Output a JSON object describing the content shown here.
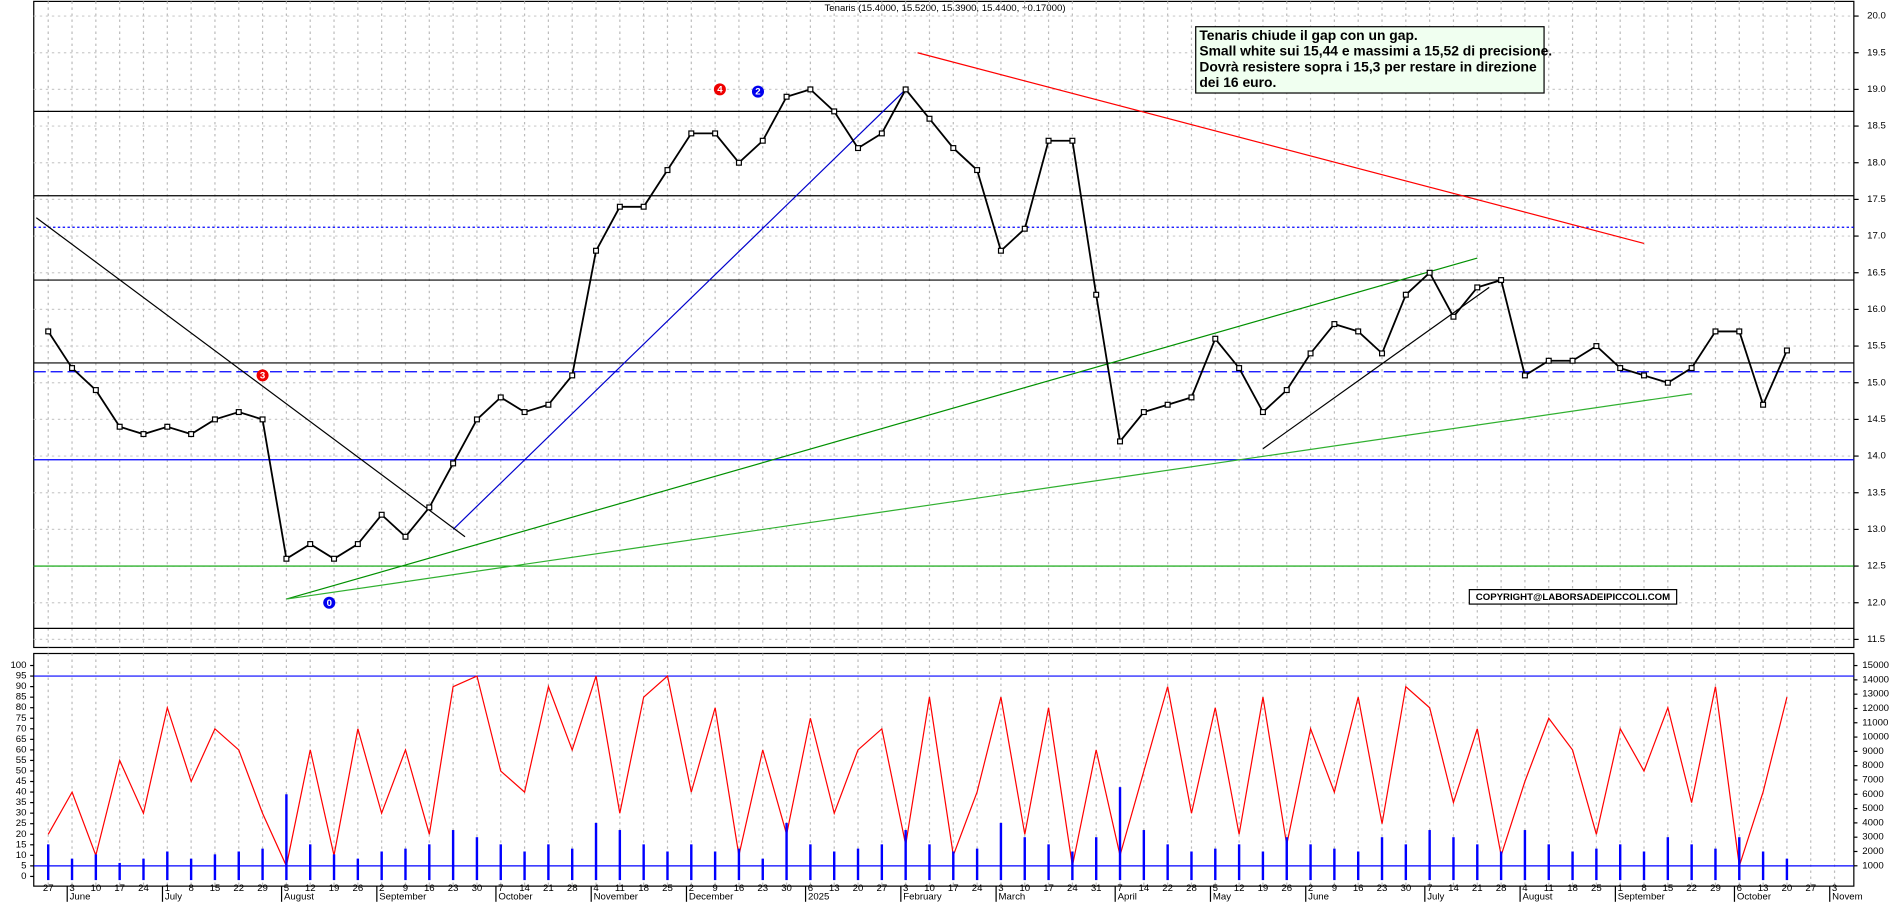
{
  "chart_data": {
    "type": "candlestick-line",
    "title": "Tenaris (15.4000, 15.5200, 15.3900, 15.4400, +0.17000)",
    "annotation": [
      "Tenaris chiude il gap con un gap.",
      "Small white sui 15,44 e massimi a 15,52 di precisione.",
      "Dovrà resistere sopra i 15,3 per restare in direzione",
      "dei 16 euro."
    ],
    "copyright": "COPYRIGHT@LABORSADEIPICCOLI.COM",
    "categories": [
      "27",
      "3",
      "10",
      "17",
      "24",
      "1",
      "8",
      "15",
      "22",
      "29",
      "5",
      "12",
      "19",
      "26",
      "2",
      "9",
      "16",
      "23",
      "30",
      "7",
      "14",
      "21",
      "28",
      "4",
      "11",
      "18",
      "25",
      "2",
      "9",
      "16",
      "23",
      "30",
      "6",
      "13",
      "20",
      "27",
      "3",
      "10",
      "17",
      "24",
      "3",
      "10",
      "17",
      "24",
      "31",
      "7",
      "14",
      "22",
      "28",
      "5",
      "12",
      "19",
      "26",
      "2",
      "9",
      "16",
      "23",
      "30",
      "7",
      "14",
      "21",
      "28",
      "4",
      "11",
      "18",
      "25",
      "1",
      "8",
      "15",
      "22",
      "29",
      "6",
      "13",
      "20",
      "27",
      "3"
    ],
    "months": [
      "June",
      "July",
      "August",
      "September",
      "October",
      "November",
      "December",
      "2025",
      "February",
      "March",
      "April",
      "May",
      "June",
      "July",
      "August",
      "September",
      "October",
      "Novem"
    ],
    "series": [
      {
        "name": "Tenaris",
        "color": "#000000",
        "values": [
          15.7,
          15.2,
          14.9,
          14.4,
          14.3,
          14.4,
          14.3,
          14.5,
          14.6,
          14.5,
          12.6,
          12.8,
          12.6,
          12.8,
          13.2,
          12.9,
          13.3,
          13.9,
          14.5,
          14.8,
          14.6,
          14.7,
          15.1,
          16.8,
          17.4,
          17.4,
          17.9,
          18.4,
          18.4,
          18.0,
          18.3,
          18.9,
          19.0,
          18.7,
          18.2,
          18.4,
          19.0,
          18.6,
          18.2,
          17.9,
          16.8,
          17.1,
          18.3,
          18.3,
          16.2,
          14.2,
          14.6,
          14.7,
          14.8,
          15.6,
          15.2,
          14.6,
          14.9,
          15.4,
          15.8,
          15.7,
          15.4,
          16.2,
          16.5,
          15.9,
          16.3,
          16.4,
          15.1,
          15.3,
          15.3,
          15.5,
          15.2,
          15.1,
          15.0,
          15.2,
          15.7,
          15.7,
          14.7,
          15.44,
          null,
          null
        ]
      },
      {
        "name": "Oscillator",
        "color": "#ff0000",
        "panel": "lower",
        "values": [
          20,
          40,
          10,
          55,
          30,
          80,
          45,
          70,
          60,
          30,
          5,
          60,
          10,
          70,
          30,
          60,
          20,
          90,
          95,
          50,
          40,
          90,
          60,
          95,
          30,
          85,
          95,
          40,
          80,
          10,
          60,
          20,
          75,
          30,
          60,
          70,
          15,
          85,
          10,
          40,
          85,
          20,
          80,
          5,
          60,
          10,
          50,
          90,
          30,
          80,
          20,
          85,
          15,
          70,
          40,
          85,
          25,
          90,
          80,
          35,
          70,
          10,
          45,
          75,
          60,
          20,
          70,
          50,
          80,
          35,
          90,
          5,
          40,
          85,
          null,
          null
        ]
      },
      {
        "name": "Volume",
        "color": "#0000ff",
        "panel": "lower",
        "axis": "y2",
        "values": [
          2500,
          1500,
          1800,
          1200,
          1500,
          2000,
          1500,
          1800,
          2000,
          2200,
          6000,
          2500,
          1800,
          1500,
          2000,
          2200,
          2500,
          3500,
          3000,
          2500,
          2000,
          2500,
          2200,
          4000,
          3500,
          2500,
          2000,
          2500,
          2000,
          2200,
          1500,
          4000,
          2500,
          2000,
          2200,
          2500,
          3500,
          2500,
          2000,
          2200,
          4000,
          3000,
          2500,
          2000,
          3000,
          6500,
          3500,
          2500,
          2000,
          2200,
          2500,
          2000,
          3000,
          2500,
          2200,
          2000,
          3000,
          2500,
          3500,
          3000,
          2500,
          2000,
          3500,
          2500,
          2000,
          2200,
          2500,
          2000,
          3000,
          2500,
          2200,
          3000,
          2000,
          1500,
          null,
          null
        ]
      }
    ],
    "ylim": [
      11.39,
      20.2
    ],
    "yticks": [
      {
        "value": 11.5,
        "label": "11.5"
      },
      {
        "value": 12,
        "label": "12.0"
      },
      {
        "value": 12.5,
        "label": "12.5"
      },
      {
        "value": 13,
        "label": "13.0"
      },
      {
        "value": 13.5,
        "label": "13.5"
      },
      {
        "value": 14,
        "label": "14.0"
      },
      {
        "value": 14.5,
        "label": "14.5"
      },
      {
        "value": 15,
        "label": "15.0"
      },
      {
        "value": 15.5,
        "label": "15.5"
      },
      {
        "value": 16,
        "label": "16.0"
      },
      {
        "value": 16.5,
        "label": "16.5"
      },
      {
        "value": 17,
        "label": "17.0"
      },
      {
        "value": 17.5,
        "label": "17.5"
      },
      {
        "value": 18,
        "label": "18.0"
      },
      {
        "value": 18.5,
        "label": "18.5"
      },
      {
        "value": 19,
        "label": "19.0"
      },
      {
        "value": 19.5,
        "label": "19.5"
      },
      {
        "value": 20,
        "label": "20.0"
      }
    ],
    "lower_ylim": [
      -4.6,
      105.7
    ],
    "lower_yticks": [
      0,
      5,
      10,
      15,
      20,
      25,
      30,
      35,
      40,
      45,
      50,
      55,
      60,
      65,
      70,
      75,
      80,
      85,
      90,
      95,
      100
    ],
    "y2lim": [
      -422,
      15843
    ],
    "y2ticks": [
      1000,
      2000,
      3000,
      4000,
      5000,
      6000,
      7000,
      8000,
      9000,
      10000,
      11000,
      12000,
      13000,
      14000,
      15000
    ],
    "hlines": [
      {
        "value": 18.7,
        "color": "#000000",
        "style": "solid"
      },
      {
        "value": 17.55,
        "color": "#000000",
        "style": "solid"
      },
      {
        "value": 17.12,
        "color": "#0000ff",
        "style": "dotted"
      },
      {
        "value": 16.4,
        "color": "#000000",
        "style": "solid"
      },
      {
        "value": 15.27,
        "color": "#000000",
        "style": "solid"
      },
      {
        "value": 15.15,
        "color": "#0000ff",
        "style": "dashed"
      },
      {
        "value": 13.95,
        "color": "#0000ff",
        "style": "solid"
      },
      {
        "value": 12.5,
        "color": "#00a000",
        "style": "solid"
      },
      {
        "value": 11.65,
        "color": "#000000",
        "style": "solid"
      }
    ],
    "lower_hlines": [
      {
        "value": 95,
        "color": "#0000ff"
      },
      {
        "value": 5,
        "color": "#0000ff"
      }
    ],
    "trendlines": [
      {
        "x": [
          36.5,
          67
        ],
        "y": [
          19.5,
          16.9
        ],
        "color": "#ff0000"
      },
      {
        "x": [
          10,
          60
        ],
        "y": [
          12.05,
          16.7
        ],
        "color": "#009000"
      },
      {
        "x": [
          10,
          69
        ],
        "y": [
          12.05,
          14.85
        ],
        "color": "#30b030"
      },
      {
        "x": [
          17,
          36
        ],
        "y": [
          13,
          19.0
        ],
        "color": "#0000cc"
      },
      {
        "x": [
          -0.5,
          17.5
        ],
        "y": [
          17.25,
          12.9
        ],
        "color": "#000000"
      },
      {
        "x": [
          51,
          60.5
        ],
        "y": [
          14.1,
          16.3
        ],
        "color": "#000000"
      }
    ],
    "markers": [
      {
        "label": "4",
        "x": 28.2,
        "y": 19.0,
        "color": "#ee0000"
      },
      {
        "label": "2",
        "x": 29.8,
        "y": 18.97,
        "color": "#0000ee"
      },
      {
        "label": "3",
        "x": 9,
        "y": 15.1,
        "color": "#ee0000"
      },
      {
        "label": "0",
        "x": 11.8,
        "y": 12.0,
        "color": "#0000ee"
      }
    ],
    "grid": true
  }
}
